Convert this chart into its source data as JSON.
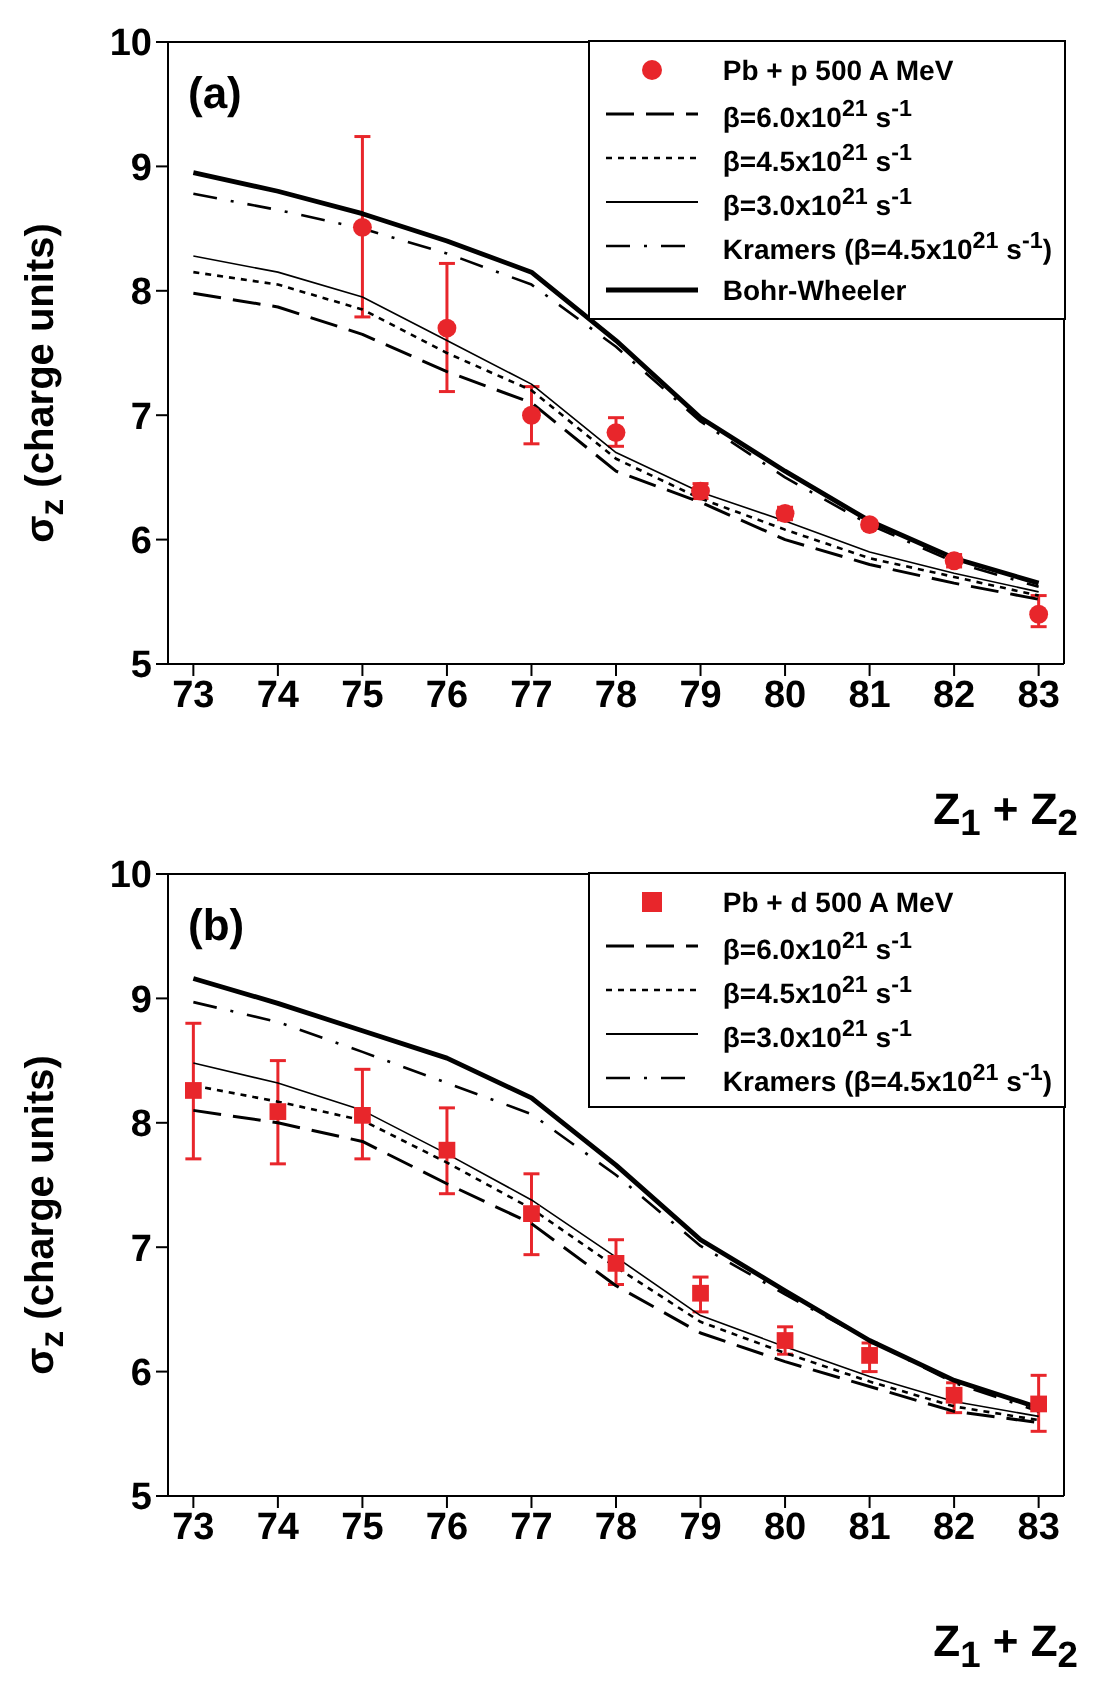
{
  "chart_data": [
    {
      "type": "line",
      "annotations": [
        "(a)"
      ],
      "ylabel": "σ$_{z}$ (charge units)",
      "xlabel": "Z$_{1}$ + Z$_{2}$",
      "xlim": [
        72.7,
        83.3
      ],
      "ylim": [
        5,
        10
      ],
      "xticks": [
        73,
        74,
        75,
        76,
        77,
        78,
        79,
        80,
        81,
        82,
        83
      ],
      "yticks": [
        5,
        6,
        7,
        8,
        9,
        10
      ],
      "legend": "top right",
      "x": [
        73,
        74,
        75,
        76,
        77,
        78,
        79,
        80,
        81,
        82,
        83
      ],
      "series": [
        {
          "name": "Pb + p 500 A MeV",
          "type": "scatter",
          "marker": "circle",
          "color": "#e8262b",
          "x": [
            75,
            76,
            77,
            78,
            79,
            80,
            81,
            82,
            83
          ],
          "values": [
            8.51,
            7.7,
            7.0,
            6.86,
            6.39,
            6.21,
            6.12,
            5.83,
            5.4
          ],
          "errors": [
            [
              7.79,
              9.24
            ],
            [
              7.19,
              8.22
            ],
            [
              6.77,
              7.23
            ],
            [
              6.75,
              6.98
            ],
            [
              6.33,
              6.45
            ],
            [
              6.16,
              6.26
            ],
            [
              6.09,
              6.15
            ],
            [
              5.78,
              5.88
            ],
            [
              5.3,
              5.55
            ]
          ]
        },
        {
          "name": "β=6.0x10$^{21}$ s$^{-1}$",
          "color": "#000000",
          "line_style": "dashed",
          "values": [
            7.98,
            7.87,
            7.65,
            7.35,
            7.1,
            6.55,
            6.3,
            6.0,
            5.8,
            5.65,
            5.52
          ]
        },
        {
          "name": "β=4.5x10$^{21}$ s$^{-1}$",
          "color": "#000000",
          "line_style": "dotted",
          "values": [
            8.15,
            8.05,
            7.85,
            7.5,
            7.2,
            6.65,
            6.33,
            6.08,
            5.85,
            5.7,
            5.55
          ]
        },
        {
          "name": "β=3.0x10$^{21}$ s$^{-1}$",
          "color": "#000000",
          "line_style": "solid",
          "values": [
            8.28,
            8.15,
            7.95,
            7.6,
            7.25,
            6.7,
            6.38,
            6.15,
            5.9,
            5.73,
            5.58
          ]
        },
        {
          "name": "Kramers (β=4.5x10$^{21}$ s$^{-1}$)",
          "color": "#000000",
          "line_style": "dashdot",
          "values": [
            8.78,
            8.65,
            8.5,
            8.3,
            8.05,
            7.55,
            6.95,
            6.5,
            6.12,
            5.82,
            5.62
          ]
        },
        {
          "name": "Bohr-Wheeler",
          "color": "#000000",
          "line_style": "solid",
          "values": [
            8.95,
            8.8,
            8.62,
            8.4,
            8.15,
            7.6,
            6.98,
            6.55,
            6.15,
            5.85,
            5.65
          ]
        }
      ]
    },
    {
      "type": "line",
      "annotations": [
        "(b)"
      ],
      "ylabel": "σ$_{z}$ (charge units)",
      "xlabel": "Z$_{1}$ + Z$_{2}$",
      "xlim": [
        72.7,
        83.3
      ],
      "ylim": [
        5,
        10
      ],
      "xticks": [
        73,
        74,
        75,
        76,
        77,
        78,
        79,
        80,
        81,
        82,
        83
      ],
      "yticks": [
        5,
        6,
        7,
        8,
        9,
        10
      ],
      "legend": "top right",
      "x": [
        73,
        74,
        75,
        76,
        77,
        78,
        79,
        80,
        81,
        82,
        83
      ],
      "series": [
        {
          "name": "Pb + d 500 A MeV",
          "type": "scatter",
          "marker": "square",
          "color": "#e8262b",
          "values": [
            8.26,
            8.09,
            8.06,
            7.78,
            7.27,
            6.87,
            6.63,
            6.25,
            6.13,
            5.81,
            5.74
          ],
          "errors": [
            [
              7.71,
              8.8
            ],
            [
              7.67,
              8.5
            ],
            [
              7.71,
              8.43
            ],
            [
              7.43,
              8.12
            ],
            [
              6.94,
              7.59
            ],
            [
              6.7,
              7.06
            ],
            [
              6.48,
              6.76
            ],
            [
              6.14,
              6.36
            ],
            [
              6.0,
              6.23
            ],
            [
              5.67,
              5.91
            ],
            [
              5.52,
              5.97
            ]
          ]
        },
        {
          "name": "β=6.0x10$^{21}$ s$^{-1}$",
          "color": "#000000",
          "line_style": "dashed",
          "values": [
            8.1,
            8.0,
            7.85,
            7.51,
            7.19,
            6.69,
            6.31,
            6.08,
            5.88,
            5.68,
            5.59
          ]
        },
        {
          "name": "β=4.5x10$^{21}$ s$^{-1}$",
          "color": "#000000",
          "line_style": "dotted",
          "values": [
            8.3,
            8.17,
            8.02,
            7.68,
            7.31,
            6.84,
            6.4,
            6.15,
            5.92,
            5.72,
            5.61
          ]
        },
        {
          "name": "β=3.0x10$^{21}$ s$^{-1}$",
          "color": "#000000",
          "line_style": "solid",
          "values": [
            8.48,
            8.32,
            8.1,
            7.75,
            7.38,
            6.92,
            6.45,
            6.2,
            5.96,
            5.76,
            5.64
          ]
        },
        {
          "name": "Kramers (β=4.5x10$^{21}$ s$^{-1}$)",
          "color": "#000000",
          "line_style": "dashdot",
          "values": [
            8.97,
            8.81,
            8.57,
            8.32,
            8.07,
            7.58,
            7.01,
            6.62,
            6.25,
            5.91,
            5.68
          ]
        },
        {
          "type": "line",
          "color": "#000000",
          "line_style": "solid",
          "values": [
            9.16,
            8.96,
            8.74,
            8.52,
            8.2,
            7.66,
            7.06,
            6.65,
            6.25,
            5.93,
            5.71
          ]
        }
      ]
    }
  ]
}
